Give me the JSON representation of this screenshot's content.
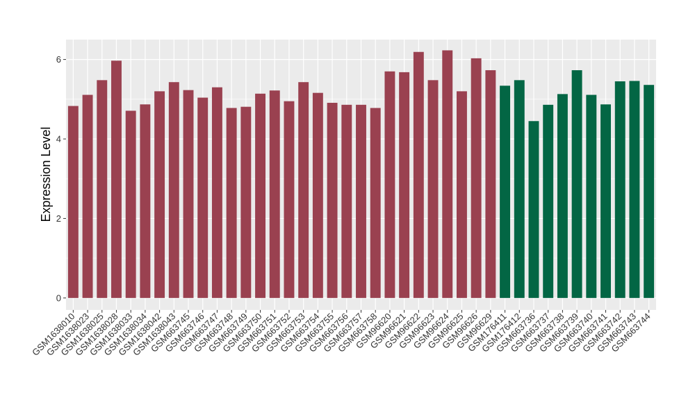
{
  "chart_data": {
    "type": "bar",
    "ylabel": "Expression Level",
    "xlabel": "",
    "ylim": [
      -0.3,
      6.5
    ],
    "yticks": [
      0,
      2,
      4,
      6
    ],
    "grid": true,
    "colors": {
      "group1": "#9A4150",
      "group2": "#036644",
      "panel": "#EBEBEB",
      "grid": "#FFFFFF"
    },
    "categories": [
      "GSM1638010",
      "GSM1638023",
      "GSM1638025",
      "GSM1638028",
      "GSM1638033",
      "GSM1638034",
      "GSM1638042",
      "GSM1638043",
      "GSM663745",
      "GSM663746",
      "GSM663747",
      "GSM663748",
      "GSM663749",
      "GSM663750",
      "GSM663751",
      "GSM663752",
      "GSM663753",
      "GSM663754",
      "GSM663755",
      "GSM663756",
      "GSM663757",
      "GSM663758",
      "GSM96620",
      "GSM96621",
      "GSM96622",
      "GSM96623",
      "GSM96624",
      "GSM96625",
      "GSM96626",
      "GSM96629",
      "GSM176411",
      "GSM176412",
      "GSM663736",
      "GSM663737",
      "GSM663738",
      "GSM663739",
      "GSM663740",
      "GSM663741",
      "GSM663742",
      "GSM663743",
      "GSM663744"
    ],
    "values": [
      4.83,
      5.11,
      5.48,
      5.97,
      4.71,
      4.87,
      5.2,
      5.43,
      5.23,
      5.04,
      5.3,
      4.78,
      4.81,
      5.14,
      5.22,
      4.95,
      5.43,
      5.16,
      4.91,
      4.86,
      4.86,
      4.78,
      5.7,
      5.68,
      6.19,
      5.48,
      6.23,
      5.2,
      6.03,
      5.73,
      5.34,
      5.48,
      4.45,
      4.86,
      5.13,
      5.73,
      5.11,
      4.87,
      5.45,
      5.46,
      5.36
    ],
    "groups": [
      1,
      1,
      1,
      1,
      1,
      1,
      1,
      1,
      1,
      1,
      1,
      1,
      1,
      1,
      1,
      1,
      1,
      1,
      1,
      1,
      1,
      1,
      1,
      1,
      1,
      1,
      1,
      1,
      1,
      1,
      2,
      2,
      2,
      2,
      2,
      2,
      2,
      2,
      2,
      2,
      2
    ]
  }
}
